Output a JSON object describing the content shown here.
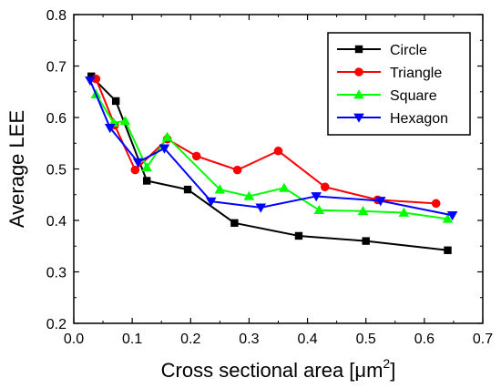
{
  "chart_data": {
    "type": "line",
    "title": "",
    "xlabel": "Cross sectional area [μm",
    "xlabel_sup": "2",
    "xlabel_close": "]",
    "ylabel": "Average LEE",
    "xlim": [
      0.0,
      0.7
    ],
    "ylim": [
      0.2,
      0.8
    ],
    "xticks": [
      0.0,
      0.1,
      0.2,
      0.3,
      0.4,
      0.5,
      0.6,
      0.7
    ],
    "xtick_labels": [
      "0.0",
      "0.1",
      "0.2",
      "0.3",
      "0.4",
      "0.5",
      "0.6",
      "0.7"
    ],
    "yticks": [
      0.2,
      0.3,
      0.4,
      0.5,
      0.6,
      0.7,
      0.8
    ],
    "ytick_labels": [
      "0.2",
      "0.3",
      "0.4",
      "0.5",
      "0.6",
      "0.7",
      "0.8"
    ],
    "grid": false,
    "legend_position": "top-right",
    "series": [
      {
        "name": "Circle",
        "color": "#000000",
        "marker": "square",
        "x": [
          0.03,
          0.072,
          0.125,
          0.195,
          0.275,
          0.385,
          0.5,
          0.64
        ],
        "y": [
          0.68,
          0.632,
          0.477,
          0.46,
          0.395,
          0.37,
          0.36,
          0.342
        ]
      },
      {
        "name": "Triangle",
        "color": "#ff0000",
        "marker": "circle",
        "x": [
          0.038,
          0.07,
          0.105,
          0.16,
          0.21,
          0.28,
          0.35,
          0.43,
          0.52,
          0.62
        ],
        "y": [
          0.675,
          0.585,
          0.498,
          0.558,
          0.525,
          0.498,
          0.535,
          0.465,
          0.44,
          0.433
        ]
      },
      {
        "name": "Square",
        "color": "#00ff00",
        "marker": "triangle-up",
        "x": [
          0.038,
          0.068,
          0.088,
          0.125,
          0.16,
          0.25,
          0.3,
          0.36,
          0.42,
          0.495,
          0.565,
          0.64
        ],
        "y": [
          0.645,
          0.59,
          0.593,
          0.503,
          0.562,
          0.46,
          0.447,
          0.463,
          0.42,
          0.418,
          0.415,
          0.403
        ]
      },
      {
        "name": "Hexagon",
        "color": "#0000ff",
        "marker": "triangle-down",
        "x": [
          0.028,
          0.062,
          0.11,
          0.155,
          0.235,
          0.32,
          0.415,
          0.525,
          0.648
        ],
        "y": [
          0.672,
          0.58,
          0.513,
          0.54,
          0.437,
          0.425,
          0.447,
          0.438,
          0.41
        ]
      }
    ]
  }
}
